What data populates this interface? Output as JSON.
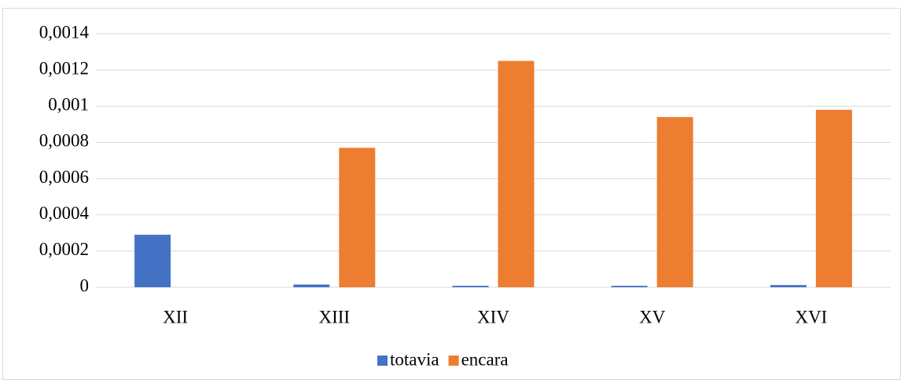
{
  "chart_data": {
    "type": "bar",
    "categories": [
      "XII",
      "XIII",
      "XIV",
      "XV",
      "XVI"
    ],
    "series": [
      {
        "name": "totavia",
        "color": "#4472c4",
        "values": [
          0.00029,
          1.5e-05,
          8e-06,
          8e-06,
          1.2e-05
        ]
      },
      {
        "name": "encara",
        "color": "#ed7d31",
        "values": [
          0,
          0.00077,
          0.00125,
          0.00094,
          0.00098
        ]
      }
    ],
    "ylim": [
      0,
      0.0014
    ],
    "yticks": [
      0,
      {
        "value": 0.0002,
        "label": "0,0002"
      },
      {
        "value": 0.0004,
        "label": "0,0004"
      },
      {
        "value": 0.0006,
        "label": "0,0006"
      },
      {
        "value": 0.0008,
        "label": "0,0008"
      },
      {
        "value": 0.001,
        "label": "0,001"
      },
      {
        "value": 0.0012,
        "label": "0,0012"
      },
      {
        "value": 0.0014,
        "label": "0,0014"
      }
    ],
    "grid": true,
    "legend": "bottom"
  }
}
